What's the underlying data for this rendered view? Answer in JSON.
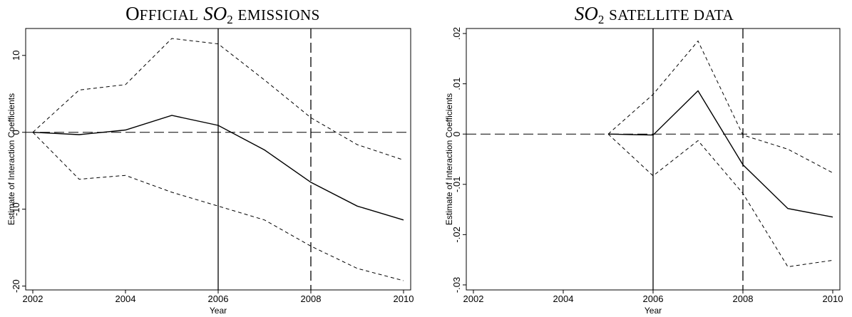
{
  "chart_data": [
    {
      "type": "line",
      "title_parts": {
        "cap": "O",
        "rest": "fficial",
        "var": "SO",
        "sub": "2",
        "suffix": "emissions"
      },
      "xlabel": "Year",
      "ylabel": "Estimate of Interaction Coefficients",
      "xlim": [
        2002,
        2010
      ],
      "ylim": [
        -20.5,
        13.5
      ],
      "xticks": [
        2002,
        2004,
        2006,
        2008,
        2010
      ],
      "xtick_labels": [
        "2002",
        "2004",
        "2006",
        "2008",
        "2010"
      ],
      "yticks": [
        -20,
        -10,
        0,
        10
      ],
      "ytick_labels": [
        "-20",
        "-10",
        "0",
        "10"
      ],
      "vlines": [
        {
          "x": 2006,
          "style": "solid"
        },
        {
          "x": 2008,
          "style": "long-dash"
        }
      ],
      "hlines": [
        {
          "y": 0,
          "style": "long-dash"
        }
      ],
      "series": [
        {
          "style": "solid",
          "x": [
            2002,
            2003,
            2004,
            2005,
            2006,
            2007,
            2008,
            2009,
            2010
          ],
          "y": [
            0,
            -0.3,
            0.3,
            2.2,
            0.9,
            -2.3,
            -6.5,
            -9.6,
            -11.4
          ]
        },
        {
          "style": "dashed",
          "x": [
            2002,
            2003,
            2004,
            2005,
            2006,
            2007,
            2008,
            2009,
            2010
          ],
          "y": [
            0,
            5.5,
            6.2,
            12.2,
            11.5,
            6.8,
            1.9,
            -1.6,
            -3.6
          ]
        },
        {
          "style": "dashed",
          "x": [
            2002,
            2003,
            2004,
            2005,
            2006,
            2007,
            2008,
            2009,
            2010
          ],
          "y": [
            0,
            -6.1,
            -5.6,
            -7.8,
            -9.6,
            -11.4,
            -14.8,
            -17.7,
            -19.3
          ]
        }
      ]
    },
    {
      "type": "line",
      "title_parts": {
        "var": "SO",
        "sub": "2",
        "suffix": "satellite data"
      },
      "xlabel": "Year",
      "ylabel": "Estimate of Interaction Coefficients",
      "xlim": [
        2002,
        2010
      ],
      "ylim": [
        -0.031,
        0.021
      ],
      "xticks": [
        2002,
        2004,
        2006,
        2008,
        2010
      ],
      "xtick_labels": [
        "2002",
        "2004",
        "2006",
        "2008",
        "2010"
      ],
      "yticks": [
        -0.03,
        -0.02,
        -0.01,
        0,
        0.01,
        0.02
      ],
      "ytick_labels": [
        "-.03",
        "-.02",
        "-.01",
        "0",
        ".01",
        ".02"
      ],
      "vlines": [
        {
          "x": 2006,
          "style": "solid"
        },
        {
          "x": 2008,
          "style": "long-dash"
        }
      ],
      "hlines": [
        {
          "y": 0,
          "style": "long-dash"
        }
      ],
      "series": [
        {
          "style": "solid",
          "x": [
            2005,
            2006,
            2007,
            2008,
            2009,
            2010
          ],
          "y": [
            0,
            -0.0002,
            0.0086,
            -0.0061,
            -0.0148,
            -0.0165
          ]
        },
        {
          "style": "dashed",
          "x": [
            2005,
            2006,
            2007,
            2008,
            2009,
            2010
          ],
          "y": [
            0,
            0.0079,
            0.0185,
            -0.0002,
            -0.003,
            -0.0077
          ]
        },
        {
          "style": "dashed",
          "x": [
            2005,
            2006,
            2007,
            2008,
            2009,
            2010
          ],
          "y": [
            0,
            -0.0083,
            -0.0013,
            -0.0118,
            -0.0264,
            -0.0251
          ]
        }
      ]
    }
  ]
}
